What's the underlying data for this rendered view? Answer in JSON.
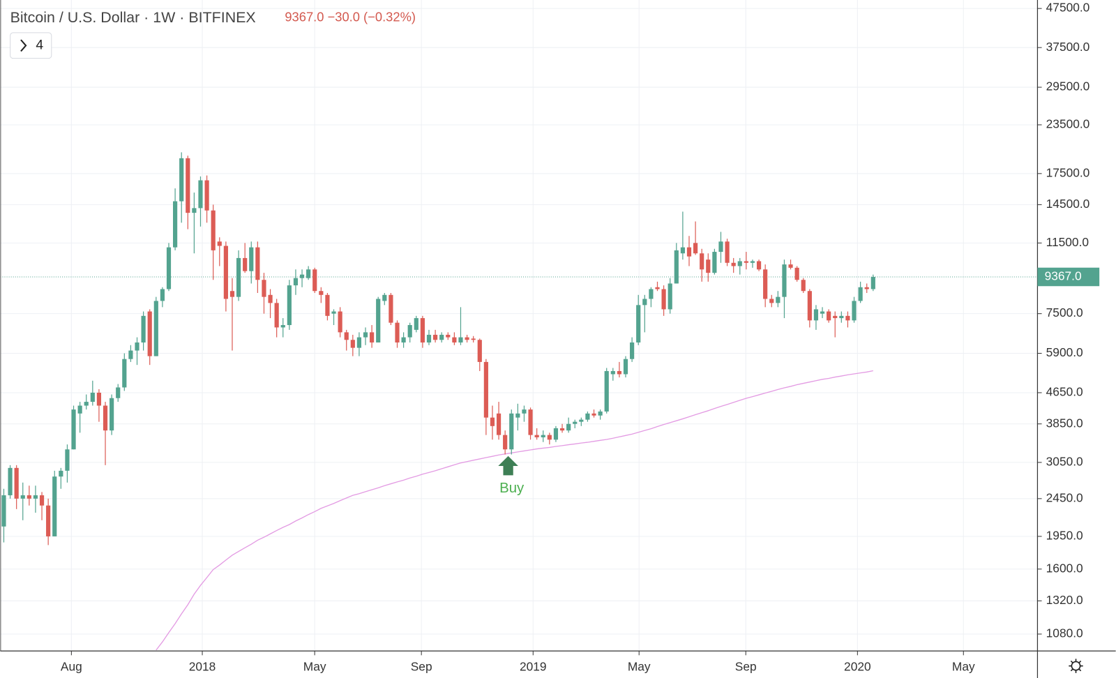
{
  "chart_data": {
    "type": "candlestick",
    "title": "Bitcoin / U.S. Dollar · 1W · BITFINEX",
    "quote": "9367.0 −30.0 (−0.32%)",
    "indicators_button": "4",
    "annotation": "Buy",
    "log_scale": true,
    "grid": true,
    "up_color": "#53a38f",
    "down_color": "#dc5c55",
    "xlim": [
      -0.56,
      162.9
    ],
    "xticks": [
      {
        "value": 10.65,
        "label": "Aug"
      },
      {
        "value": 31.28,
        "label": "2018"
      },
      {
        "value": 48.99,
        "label": "May"
      },
      {
        "value": 65.81,
        "label": "Sep"
      },
      {
        "value": 83.41,
        "label": "2019"
      },
      {
        "value": 100.11,
        "label": "May"
      },
      {
        "value": 116.93,
        "label": "Sep"
      },
      {
        "value": 134.53,
        "label": "2020"
      },
      {
        "value": 151.23,
        "label": "May"
      }
    ],
    "ylim": [
      975,
      50000
    ],
    "yticks": [
      {
        "value": 47500,
        "label": "47500.0"
      },
      {
        "value": 37500,
        "label": "37500.0"
      },
      {
        "value": 29500,
        "label": "29500.0"
      },
      {
        "value": 23500,
        "label": "23500.0"
      },
      {
        "value": 17500,
        "label": "17500.0"
      },
      {
        "value": 14500,
        "label": "14500.0"
      },
      {
        "value": 11500,
        "label": "11500.0"
      },
      {
        "value": 7500,
        "label": "7500.0"
      },
      {
        "value": 5900,
        "label": "5900.0"
      },
      {
        "value": 4650,
        "label": "4650.0"
      },
      {
        "value": 3850,
        "label": "3850.0"
      },
      {
        "value": 3050,
        "label": "3050.0"
      },
      {
        "value": 2450,
        "label": "2450.0"
      },
      {
        "value": 1950,
        "label": "1950.0"
      },
      {
        "value": 1600,
        "label": "1600.0"
      },
      {
        "value": 1320,
        "label": "1320.0"
      },
      {
        "value": 1080,
        "label": "1080.0"
      }
    ],
    "last_price": {
      "value": 9367,
      "label": "9367.0"
    },
    "open": [
      2070,
      2500,
      2950,
      2450,
      2500,
      2450,
      2500,
      2350,
      1950,
      2800,
      2900,
      3300,
      4100,
      4300,
      4400,
      4650,
      4300,
      3700,
      4500,
      4800,
      5700,
      6000,
      6300,
      7600,
      5800,
      8100,
      8700,
      11200,
      14800,
      19200,
      13800,
      14200,
      16800,
      14000,
      11600,
      11300,
      8600,
      8300,
      10500,
      9700,
      11200,
      9200,
      8400,
      8000,
      6900,
      7000,
      8900,
      9300,
      9300,
      9800,
      8600,
      8400,
      7500,
      7600,
      6700,
      6400,
      6100,
      6500,
      6700,
      6300,
      8100,
      8400,
      7100,
      6300,
      6500,
      6800,
      7300,
      6300,
      6600,
      6400,
      6600,
      6500,
      6300,
      6500,
      6450,
      6400,
      5600,
      4000,
      4100,
      3600,
      3300,
      4000,
      4100,
      4200,
      3600,
      3550,
      3600,
      3500,
      3750,
      3700,
      3850,
      3900,
      3950,
      4100,
      4050,
      4150,
      5200,
      5300,
      5200,
      5700,
      6300,
      7900,
      8200,
      8800,
      8700,
      7700,
      9000,
      10800,
      11200,
      11500,
      10800,
      10400,
      9600,
      10900,
      11600,
      10200,
      10000,
      10300,
      10200,
      10300,
      9800,
      8200,
      8000,
      8300,
      10100,
      9900,
      9200,
      8600,
      7200,
      7500,
      7600,
      7400,
      7300,
      7400,
      7200,
      8100,
      8800,
      8700
    ],
    "high": [
      2600,
      3000,
      3000,
      2700,
      2650,
      2650,
      2550,
      2450,
      2900,
      2950,
      3400,
      4300,
      4400,
      4600,
      5000,
      4750,
      4400,
      4600,
      4900,
      5900,
      6200,
      6500,
      7600,
      7700,
      8300,
      8800,
      11500,
      16000,
      19900,
      19500,
      15600,
      17200,
      17300,
      14500,
      11900,
      11600,
      9300,
      11000,
      11500,
      11600,
      11600,
      9600,
      8700,
      8200,
      7300,
      9200,
      9800,
      9800,
      10000,
      9900,
      8800,
      8500,
      7700,
      7800,
      6800,
      6600,
      6700,
      6900,
      7000,
      8300,
      8500,
      8500,
      7200,
      6700,
      7100,
      7400,
      7400,
      6800,
      6800,
      6700,
      6700,
      6700,
      7800,
      6600,
      6550,
      6450,
      5700,
      4300,
      4400,
      3700,
      4200,
      4350,
      4300,
      4250,
      3750,
      3700,
      3650,
      3800,
      3850,
      4000,
      3950,
      4000,
      4150,
      4200,
      4200,
      5400,
      5400,
      5600,
      5800,
      6500,
      8400,
      8400,
      8800,
      9100,
      8900,
      9300,
      11500,
      13900,
      12000,
      13100,
      11100,
      10800,
      11100,
      12300,
      11800,
      10500,
      10500,
      10900,
      10400,
      10400,
      10100,
      8400,
      8600,
      10400,
      10400,
      10000,
      9300,
      8700,
      7900,
      7800,
      7700,
      7600,
      7600,
      7600,
      8300,
      9100,
      9000,
      9500
    ],
    "low": [
      1880,
      2450,
      2300,
      2150,
      2350,
      2250,
      2150,
      1850,
      1950,
      2600,
      2700,
      3300,
      3650,
      4200,
      4300,
      3900,
      3000,
      3600,
      4400,
      4700,
      5600,
      5500,
      6000,
      5500,
      5800,
      7800,
      8600,
      11000,
      13000,
      12500,
      10800,
      12700,
      13000,
      9200,
      10000,
      7600,
      6000,
      8100,
      9600,
      9000,
      8500,
      7500,
      7300,
      6500,
      6500,
      6800,
      8400,
      8800,
      9200,
      8500,
      8000,
      7200,
      7000,
      6500,
      6000,
      5800,
      5800,
      6200,
      6100,
      6300,
      7900,
      7000,
      6100,
      6100,
      6300,
      6700,
      6100,
      6200,
      6300,
      6300,
      6400,
      6200,
      6200,
      6300,
      6300,
      5300,
      3600,
      3500,
      3500,
      3200,
      3200,
      3700,
      3900,
      3500,
      3500,
      3450,
      3400,
      3450,
      3650,
      3650,
      3750,
      3800,
      3900,
      4000,
      3950,
      4100,
      5000,
      5100,
      5100,
      5600,
      6200,
      6700,
      7800,
      8600,
      7400,
      7500,
      9000,
      10400,
      10000,
      10700,
      9100,
      9100,
      9500,
      10200,
      10000,
      9600,
      9500,
      9800,
      9900,
      9700,
      7800,
      7800,
      7800,
      7300,
      9800,
      9100,
      8500,
      6900,
      6800,
      7300,
      7100,
      6500,
      7100,
      6900,
      7100,
      8000,
      8500,
      8600
    ],
    "close": [
      2500,
      2950,
      2450,
      2500,
      2450,
      2500,
      2350,
      1950,
      2800,
      2900,
      3300,
      4200,
      4300,
      4400,
      4650,
      4300,
      3700,
      4500,
      4800,
      5700,
      6000,
      6300,
      7400,
      5800,
      8100,
      8700,
      11200,
      14800,
      19200,
      13800,
      14200,
      16800,
      14000,
      11000,
      11300,
      8200,
      8300,
      10500,
      9700,
      11200,
      9200,
      8300,
      8000,
      6900,
      7000,
      8900,
      9300,
      9500,
      9800,
      8600,
      8400,
      7400,
      7600,
      6700,
      6400,
      6100,
      6500,
      6700,
      6300,
      8200,
      8400,
      7100,
      6300,
      6500,
      7000,
      7300,
      6300,
      6600,
      6400,
      6600,
      6500,
      6300,
      6500,
      6400,
      6400,
      5600,
      4000,
      3800,
      3600,
      3300,
      4100,
      4100,
      4200,
      3600,
      3550,
      3600,
      3500,
      3750,
      3700,
      3850,
      3900,
      3950,
      4100,
      4050,
      4150,
      5300,
      5300,
      5200,
      5700,
      6300,
      7900,
      8200,
      8700,
      8700,
      7700,
      9000,
      11000,
      11200,
      10600,
      10800,
      9800,
      9600,
      10900,
      11600,
      10200,
      10000,
      10300,
      10200,
      10300,
      9800,
      8200,
      8000,
      8300,
      10100,
      9900,
      9200,
      8600,
      7200,
      7700,
      7600,
      7200,
      7300,
      7400,
      7200,
      8100,
      8800,
      8700,
      9367
    ],
    "ma": {
      "color": "#e39be3",
      "values": [
        null,
        null,
        null,
        null,
        null,
        null,
        null,
        null,
        null,
        null,
        null,
        null,
        null,
        null,
        null,
        null,
        null,
        null,
        null,
        null,
        null,
        null,
        null,
        null,
        980,
        1030,
        1090,
        1150,
        1220,
        1290,
        1375,
        1450,
        1520,
        1595,
        1640,
        1690,
        1740,
        1780,
        1820,
        1860,
        1905,
        1940,
        1980,
        2020,
        2060,
        2095,
        2140,
        2180,
        2225,
        2265,
        2310,
        2345,
        2380,
        2420,
        2460,
        2500,
        2525,
        2555,
        2585,
        2615,
        2650,
        2680,
        2710,
        2740,
        2775,
        2805,
        2840,
        2870,
        2900,
        2935,
        2970,
        3005,
        3040,
        3065,
        3090,
        3115,
        3140,
        3165,
        3190,
        3210,
        3230,
        3250,
        3270,
        3290,
        3310,
        3325,
        3340,
        3360,
        3375,
        3395,
        3410,
        3430,
        3445,
        3465,
        3485,
        3505,
        3530,
        3560,
        3590,
        3620,
        3660,
        3700,
        3740,
        3790,
        3835,
        3880,
        3925,
        3970,
        4020,
        4070,
        4120,
        4170,
        4225,
        4280,
        4330,
        4385,
        4440,
        4495,
        4540,
        4590,
        4640,
        4690,
        4740,
        4790,
        4830,
        4880,
        4920,
        4960,
        5000,
        5040,
        5070,
        5110,
        5145,
        5180,
        5210,
        5240,
        5270,
        5310
      ]
    }
  }
}
